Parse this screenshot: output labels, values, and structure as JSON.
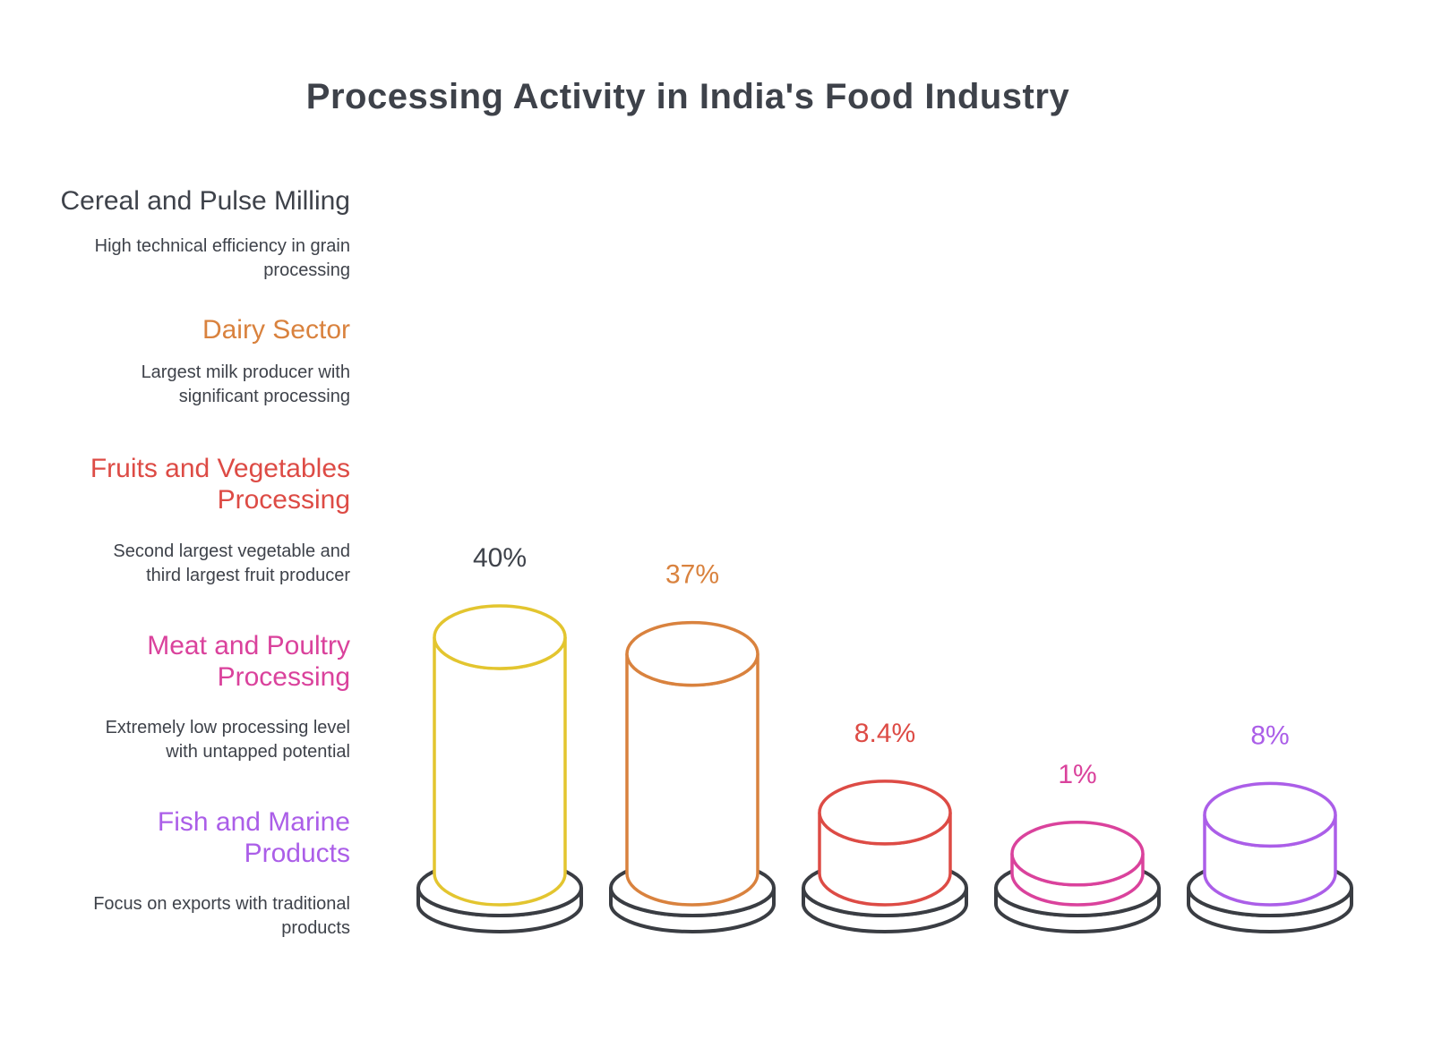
{
  "chart_data": {
    "type": "bar",
    "style": "outlined-3d-cylinders-on-dark-platforms",
    "title": "Processing Activity in India's Food Industry",
    "unit": "%",
    "ylim": [
      0,
      40
    ],
    "grid": false,
    "legend": false,
    "base_platform_color": "#3a3d43",
    "text_color": "#3e424a",
    "series": [
      {
        "category": "Cereal and Pulse Milling",
        "description": "High technical efficiency in grain\nprocessing",
        "value": 40,
        "value_label": "40%",
        "color": "#e3c52f",
        "label_color": "#3e424a"
      },
      {
        "category": "Dairy Sector",
        "description": "Largest milk producer with\nsignificant processing",
        "value": 37,
        "value_label": "37%",
        "color": "#d9823e",
        "label_color": "#d9823e"
      },
      {
        "category": "Fruits and Vegetables\nProcessing",
        "description": "Second largest vegetable and\nthird largest fruit producer",
        "value": 8.4,
        "value_label": "8.4%",
        "color": "#dd4b45",
        "label_color": "#dd4b45"
      },
      {
        "category": "Meat and Poultry\nProcessing",
        "description": "Extremely low processing level\nwith untapped potential",
        "value": 1,
        "value_label": "1%",
        "color": "#da429c",
        "label_color": "#da429c"
      },
      {
        "category": "Fish and Marine\nProducts",
        "description": "Focus on exports with traditional\nproducts",
        "value": 8,
        "value_label": "8%",
        "color": "#ab5ee8",
        "label_color": "#ab5ee8"
      }
    ]
  }
}
